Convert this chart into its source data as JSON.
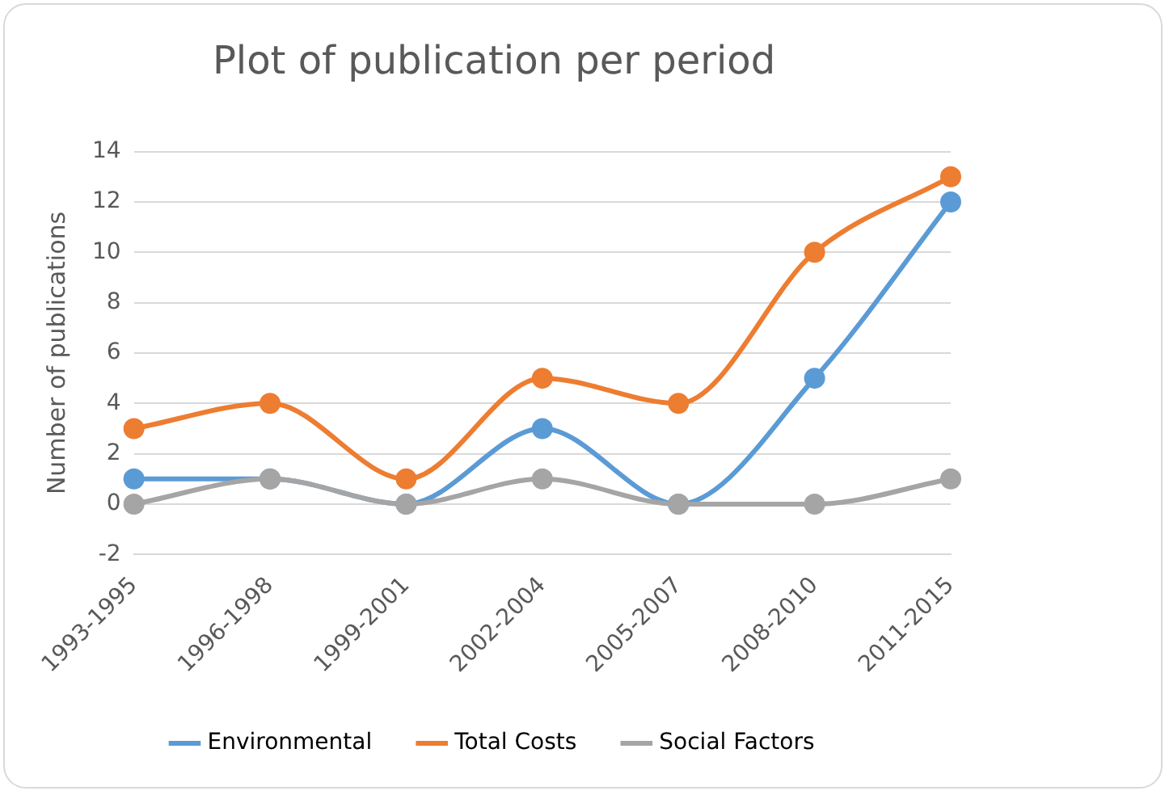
{
  "chart_data": {
    "type": "line",
    "title": "Plot of publication per period",
    "ylabel": "Number of publications",
    "categories": [
      "1993-1995",
      "1996-1998",
      "1999-2001",
      "2002-2004",
      "2005-2007",
      "2008-2010",
      "2011-2015"
    ],
    "series": [
      {
        "name": "Environmental",
        "color": "#5b9bd5",
        "values": [
          1,
          1,
          0,
          3,
          0,
          5,
          12
        ]
      },
      {
        "name": "Total Costs",
        "color": "#ed7d31",
        "values": [
          3,
          4,
          1,
          5,
          4,
          10,
          13
        ]
      },
      {
        "name": "Social Factors",
        "color": "#a5a5a5",
        "values": [
          0,
          1,
          0,
          1,
          0,
          0,
          1
        ]
      }
    ],
    "ylim": [
      -2,
      14
    ],
    "yticks": [
      -2,
      0,
      2,
      4,
      6,
      8,
      10,
      12,
      14
    ],
    "grid": "y",
    "legend": "bottom",
    "marker": "circle",
    "line_style": "solid"
  }
}
